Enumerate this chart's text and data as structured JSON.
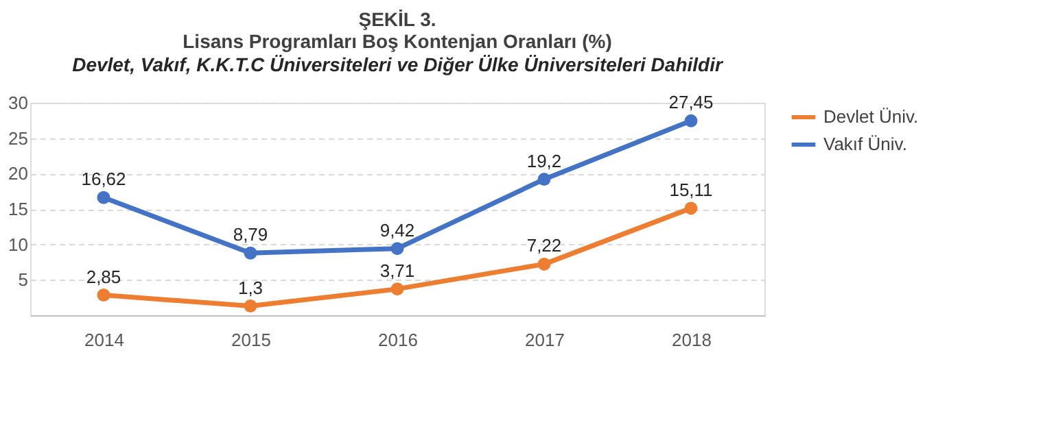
{
  "chart_data": {
    "type": "line",
    "title": "ŞEKİL 3.\nLisans Programları Boş Kontenjan Oranları  (%)",
    "subtitle": "Devlet, Vakıf, K.K.T.C Üniversiteleri ve Diğer Ülke Üniversiteleri Dahildir",
    "categories": [
      "2014",
      "2015",
      "2016",
      "2017",
      "2018"
    ],
    "series": [
      {
        "name": "Devlet Üniv.",
        "color": "#ed7d31",
        "values": [
          2.85,
          1.3,
          3.71,
          7.22,
          15.11
        ],
        "value_labels": [
          "2,85",
          "1,3",
          "3,71",
          "7,22",
          "15,11"
        ]
      },
      {
        "name": "Vakıf Üniv.",
        "color": "#4472c4",
        "values": [
          16.62,
          8.79,
          9.42,
          19.2,
          27.45
        ],
        "value_labels": [
          "16,62",
          "8,79",
          "9,42",
          "19,2",
          "27,45"
        ]
      }
    ],
    "ylim": [
      0,
      30
    ],
    "yticks": [
      5,
      10,
      15,
      20,
      25,
      30
    ],
    "grid": "y",
    "legend": "right",
    "marker": "circle",
    "line_style": "solid"
  }
}
